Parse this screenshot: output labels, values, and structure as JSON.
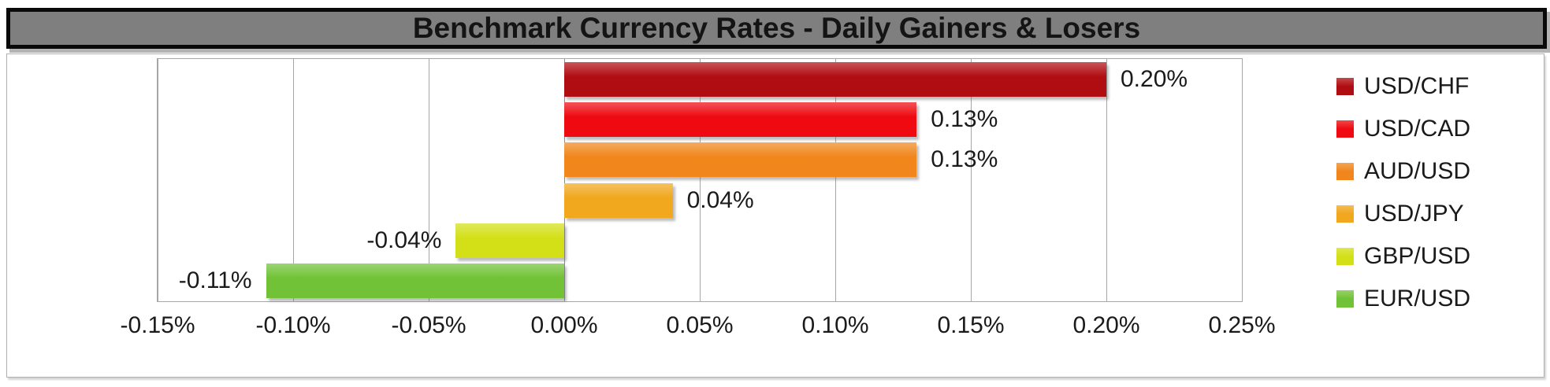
{
  "chart_data": {
    "type": "bar",
    "orientation": "horizontal",
    "title": "Benchmark Currency Rates - Daily Gainers & Losers",
    "categories": [
      "USD/CHF",
      "USD/CAD",
      "AUD/USD",
      "USD/JPY",
      "GBP/USD",
      "EUR/USD"
    ],
    "values": [
      0.2,
      0.13,
      0.13,
      0.04,
      -0.04,
      -0.11
    ],
    "value_labels": [
      "0.20%",
      "0.13%",
      "0.13%",
      "0.04%",
      "-0.04%",
      "-0.11%"
    ],
    "bar_colors": [
      "#b00d12",
      "#ee0a10",
      "#f0861c",
      "#f1a71e",
      "#d3e017",
      "#71c236"
    ],
    "x_axis": {
      "min": -0.15,
      "max": 0.25,
      "step": 0.05,
      "tick_labels": [
        "-0.15%",
        "-0.10%",
        "-0.05%",
        "0.00%",
        "0.05%",
        "0.10%",
        "0.15%",
        "0.20%",
        "0.25%"
      ]
    },
    "legend": {
      "position": "right",
      "entries": [
        "USD/CHF",
        "USD/CAD",
        "AUD/USD",
        "USD/JPY",
        "GBP/USD",
        "EUR/USD"
      ]
    },
    "grid": "vertical-on"
  },
  "colors": {
    "title_background": "#7f7f7f",
    "title_text": "#141414",
    "gridline": "#a6a6a6",
    "label_text": "#1a1a1a"
  }
}
